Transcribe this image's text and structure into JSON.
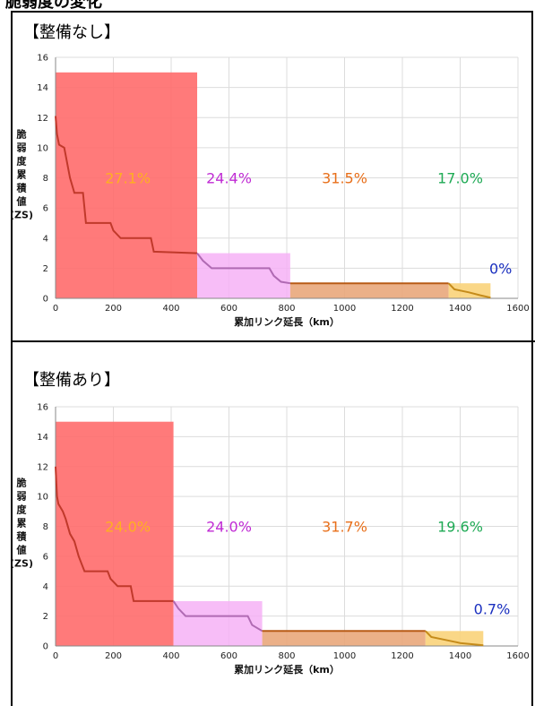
{
  "page": {
    "title": "脆弱度の変化"
  },
  "colors": {
    "red_fill": "#ff6b6b",
    "pink_fill": "#f6b2f6",
    "orange_fill": "#e9a77b",
    "yellow_fill": "#f9d37a",
    "red_line": "#c0392b",
    "pink_line": "#b06ab3",
    "orange_line": "#b85b16",
    "yellow_line": "#c58b1a",
    "grid": "#dcdcdc",
    "axis": "#888888"
  },
  "chart_data": [
    {
      "type": "area",
      "heading": "【整備なし】",
      "xlabel": "累加リンク延長（km）",
      "ylabel": [
        "脆",
        "弱",
        "度",
        "累",
        "積",
        "値",
        "(ZS)"
      ],
      "xlim": [
        0,
        1600
      ],
      "ylim": [
        0,
        16
      ],
      "xticks": [
        0,
        200,
        400,
        600,
        800,
        1000,
        1200,
        1400,
        1600
      ],
      "yticks": [
        0,
        2,
        4,
        6,
        8,
        10,
        12,
        14,
        16
      ],
      "blocks": [
        {
          "x0": 0,
          "x1": 490,
          "height": 15.0,
          "color": "#ff6b6b",
          "opacity": 0.9
        },
        {
          "x0": 490,
          "x1": 812,
          "height": 3.0,
          "color": "#f6b2f6",
          "opacity": 0.85
        },
        {
          "x0": 812,
          "x1": 1360,
          "height": 1.0,
          "color": "#e9a77b",
          "opacity": 0.9
        },
        {
          "x0": 1360,
          "x1": 1505,
          "height": 1.0,
          "color": "#f9d37a",
          "opacity": 0.9
        }
      ],
      "series": [
        {
          "color": "#c0392b",
          "points": [
            [
              0,
              12.1
            ],
            [
              5,
              10.9
            ],
            [
              12,
              10.2
            ],
            [
              30,
              10.0
            ],
            [
              40,
              9.0
            ],
            [
              50,
              8.0
            ],
            [
              65,
              7.0
            ],
            [
              95,
              7.0
            ],
            [
              105,
              5.0
            ],
            [
              190,
              5.0
            ],
            [
              200,
              4.5
            ],
            [
              225,
              4.0
            ],
            [
              330,
              4.0
            ],
            [
              340,
              3.1
            ],
            [
              490,
              3.0
            ]
          ]
        },
        {
          "color": "#b06ab3",
          "points": [
            [
              490,
              3.0
            ],
            [
              510,
              2.5
            ],
            [
              540,
              2.0
            ],
            [
              740,
              2.0
            ],
            [
              755,
              1.5
            ],
            [
              780,
              1.1
            ],
            [
              812,
              1.0
            ]
          ]
        },
        {
          "color": "#b85b16",
          "points": [
            [
              812,
              1.0
            ],
            [
              1360,
              1.0
            ]
          ]
        },
        {
          "color": "#c58b1a",
          "points": [
            [
              1360,
              1.0
            ],
            [
              1380,
              0.6
            ],
            [
              1430,
              0.4
            ],
            [
              1470,
              0.2
            ],
            [
              1505,
              0.05
            ]
          ]
        }
      ],
      "labels": [
        {
          "text": "27.1%",
          "x": 250,
          "y": 8.0,
          "color": "#ffb01f"
        },
        {
          "text": "24.4%",
          "x": 600,
          "y": 8.0,
          "color": "#c02bd4"
        },
        {
          "text": "31.5%",
          "x": 1000,
          "y": 8.0,
          "color": "#e86f1a"
        },
        {
          "text": "17.0%",
          "x": 1400,
          "y": 8.0,
          "color": "#1faa55"
        },
        {
          "text": "0%",
          "x": 1540,
          "y": 2.0,
          "color": "#1a2fbf"
        }
      ]
    },
    {
      "type": "area",
      "heading": "【整備あり】",
      "xlabel": "累加リンク延長（km）",
      "ylabel": [
        "脆",
        "弱",
        "度",
        "累",
        "積",
        "値",
        "(ZS)"
      ],
      "xlim": [
        0,
        1600
      ],
      "ylim": [
        0,
        16
      ],
      "xticks": [
        0,
        200,
        400,
        600,
        800,
        1000,
        1200,
        1400,
        1600
      ],
      "yticks": [
        0,
        2,
        4,
        6,
        8,
        10,
        12,
        14,
        16
      ],
      "blocks": [
        {
          "x0": 0,
          "x1": 408,
          "height": 15.0,
          "color": "#ff6b6b",
          "opacity": 0.9
        },
        {
          "x0": 408,
          "x1": 715,
          "height": 3.0,
          "color": "#f6b2f6",
          "opacity": 0.85
        },
        {
          "x0": 715,
          "x1": 1280,
          "height": 1.0,
          "color": "#e9a77b",
          "opacity": 0.9
        },
        {
          "x0": 1280,
          "x1": 1480,
          "height": 1.0,
          "color": "#f9d37a",
          "opacity": 0.9
        }
      ],
      "series": [
        {
          "color": "#c0392b",
          "points": [
            [
              0,
              12.0
            ],
            [
              5,
              10.0
            ],
            [
              10,
              9.5
            ],
            [
              25,
              9.0
            ],
            [
              35,
              8.5
            ],
            [
              50,
              7.5
            ],
            [
              65,
              7.0
            ],
            [
              80,
              6.0
            ],
            [
              90,
              5.5
            ],
            [
              100,
              5.0
            ],
            [
              180,
              5.0
            ],
            [
              190,
              4.5
            ],
            [
              215,
              4.0
            ],
            [
              260,
              4.0
            ],
            [
              270,
              3.0
            ],
            [
              408,
              3.0
            ]
          ]
        },
        {
          "color": "#b06ab3",
          "points": [
            [
              408,
              3.0
            ],
            [
              425,
              2.5
            ],
            [
              450,
              2.0
            ],
            [
              665,
              2.0
            ],
            [
              680,
              1.4
            ],
            [
              715,
              1.0
            ]
          ]
        },
        {
          "color": "#b85b16",
          "points": [
            [
              715,
              1.0
            ],
            [
              1280,
              1.0
            ]
          ]
        },
        {
          "color": "#c58b1a",
          "points": [
            [
              1280,
              1.0
            ],
            [
              1300,
              0.6
            ],
            [
              1350,
              0.4
            ],
            [
              1400,
              0.2
            ],
            [
              1480,
              0.05
            ]
          ]
        }
      ],
      "labels": [
        {
          "text": "24.0%",
          "x": 250,
          "y": 8.0,
          "color": "#ffb01f"
        },
        {
          "text": "24.0%",
          "x": 600,
          "y": 8.0,
          "color": "#c02bd4"
        },
        {
          "text": "31.7%",
          "x": 1000,
          "y": 8.0,
          "color": "#e86f1a"
        },
        {
          "text": "19.6%",
          "x": 1400,
          "y": 8.0,
          "color": "#1faa55"
        },
        {
          "text": "0.7%",
          "x": 1510,
          "y": 2.5,
          "color": "#1a2fbf"
        }
      ]
    }
  ]
}
